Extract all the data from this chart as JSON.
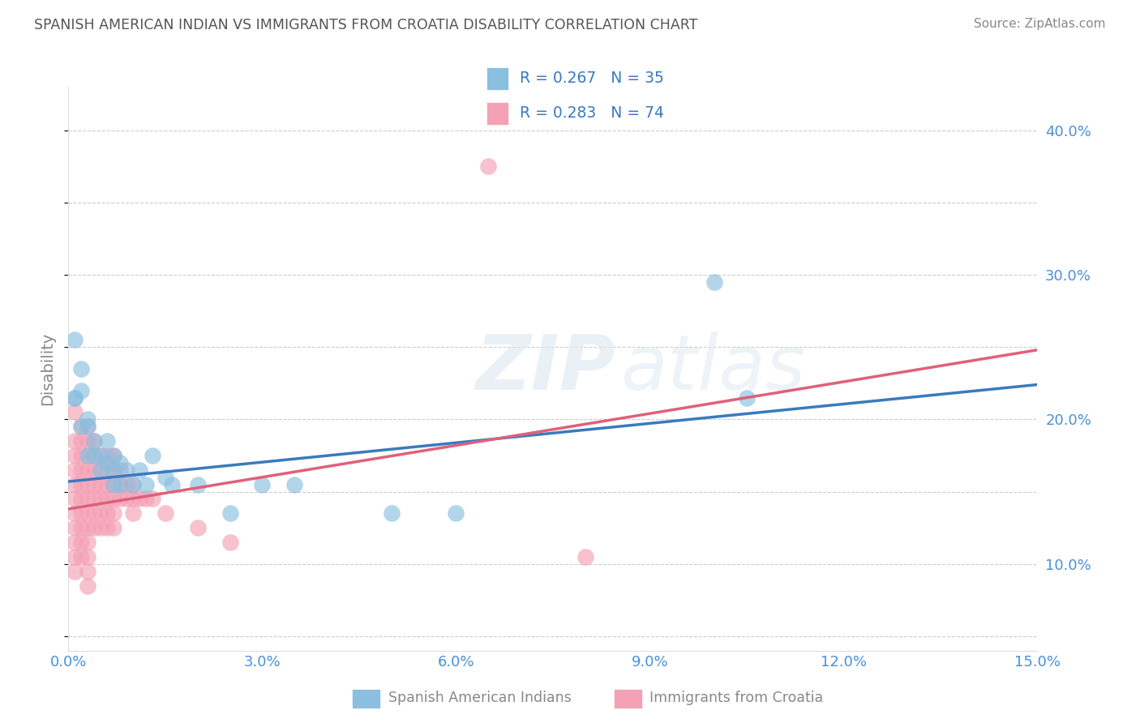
{
  "title": "SPANISH AMERICAN INDIAN VS IMMIGRANTS FROM CROATIA DISABILITY CORRELATION CHART",
  "source": "Source: ZipAtlas.com",
  "ylabel": "Disability",
  "xlim": [
    0.0,
    0.15
  ],
  "ylim": [
    0.04,
    0.43
  ],
  "xticks": [
    0.0,
    0.03,
    0.06,
    0.09,
    0.12,
    0.15
  ],
  "yticks": [
    0.1,
    0.2,
    0.3,
    0.4
  ],
  "ytick_labels": [
    "10.0%",
    "20.0%",
    "30.0%",
    "40.0%"
  ],
  "xtick_labels": [
    "0.0%",
    "3.0%",
    "6.0%",
    "9.0%",
    "12.0%",
    "15.0%"
  ],
  "series1_label": "Spanish American Indians",
  "series2_label": "Immigrants from Croatia",
  "series1_R": "0.267",
  "series1_N": "35",
  "series2_R": "0.283",
  "series2_N": "74",
  "series1_color": "#8abfdf",
  "series2_color": "#f4a0b5",
  "series1_line_color": "#3a7abf",
  "series2_line_color": "#e0607a",
  "watermark_zip": "ZIP",
  "watermark_atlas": "atlas",
  "background_color": "#ffffff",
  "grid_color": "#cccccc",
  "title_color": "#555555",
  "axis_label_color": "#888888",
  "tick_color": "#4a90d9",
  "legend_color": "#3a7abf",
  "trend1_x0": 0.0,
  "trend1_y0": 0.157,
  "trend1_x1": 0.15,
  "trend1_y1": 0.224,
  "trend2_x0": 0.0,
  "trend2_y0": 0.138,
  "trend2_x1": 0.15,
  "trend2_y1": 0.248,
  "series1_x": [
    0.001,
    0.001,
    0.001,
    0.002,
    0.002,
    0.002,
    0.003,
    0.003,
    0.003,
    0.004,
    0.004,
    0.005,
    0.005,
    0.006,
    0.006,
    0.007,
    0.007,
    0.007,
    0.008,
    0.008,
    0.009,
    0.01,
    0.011,
    0.012,
    0.013,
    0.015,
    0.016,
    0.02,
    0.025,
    0.03,
    0.035,
    0.05,
    0.06,
    0.1,
    0.105
  ],
  "series1_y": [
    0.215,
    0.255,
    0.215,
    0.235,
    0.195,
    0.22,
    0.2,
    0.175,
    0.195,
    0.175,
    0.185,
    0.165,
    0.175,
    0.17,
    0.185,
    0.165,
    0.175,
    0.155,
    0.17,
    0.155,
    0.165,
    0.155,
    0.165,
    0.155,
    0.175,
    0.16,
    0.155,
    0.155,
    0.135,
    0.155,
    0.155,
    0.135,
    0.135,
    0.295,
    0.215
  ],
  "series2_x": [
    0.001,
    0.001,
    0.001,
    0.001,
    0.001,
    0.001,
    0.001,
    0.001,
    0.001,
    0.001,
    0.001,
    0.002,
    0.002,
    0.002,
    0.002,
    0.002,
    0.002,
    0.002,
    0.002,
    0.002,
    0.002,
    0.003,
    0.003,
    0.003,
    0.003,
    0.003,
    0.003,
    0.003,
    0.003,
    0.003,
    0.003,
    0.003,
    0.003,
    0.004,
    0.004,
    0.004,
    0.004,
    0.004,
    0.004,
    0.004,
    0.005,
    0.005,
    0.005,
    0.005,
    0.005,
    0.005,
    0.006,
    0.006,
    0.006,
    0.006,
    0.006,
    0.006,
    0.007,
    0.007,
    0.007,
    0.007,
    0.007,
    0.007,
    0.008,
    0.008,
    0.008,
    0.009,
    0.009,
    0.01,
    0.01,
    0.01,
    0.011,
    0.012,
    0.013,
    0.015,
    0.02,
    0.025,
    0.065,
    0.08
  ],
  "series2_y": [
    0.205,
    0.185,
    0.175,
    0.165,
    0.155,
    0.145,
    0.135,
    0.125,
    0.115,
    0.105,
    0.095,
    0.195,
    0.185,
    0.175,
    0.165,
    0.155,
    0.145,
    0.135,
    0.125,
    0.115,
    0.105,
    0.195,
    0.185,
    0.175,
    0.165,
    0.155,
    0.145,
    0.135,
    0.125,
    0.115,
    0.105,
    0.095,
    0.085,
    0.185,
    0.175,
    0.165,
    0.155,
    0.145,
    0.135,
    0.125,
    0.175,
    0.165,
    0.155,
    0.145,
    0.135,
    0.125,
    0.175,
    0.165,
    0.155,
    0.145,
    0.135,
    0.125,
    0.175,
    0.165,
    0.155,
    0.145,
    0.135,
    0.125,
    0.165,
    0.155,
    0.145,
    0.155,
    0.145,
    0.155,
    0.145,
    0.135,
    0.145,
    0.145,
    0.145,
    0.135,
    0.125,
    0.115,
    0.375,
    0.105
  ]
}
